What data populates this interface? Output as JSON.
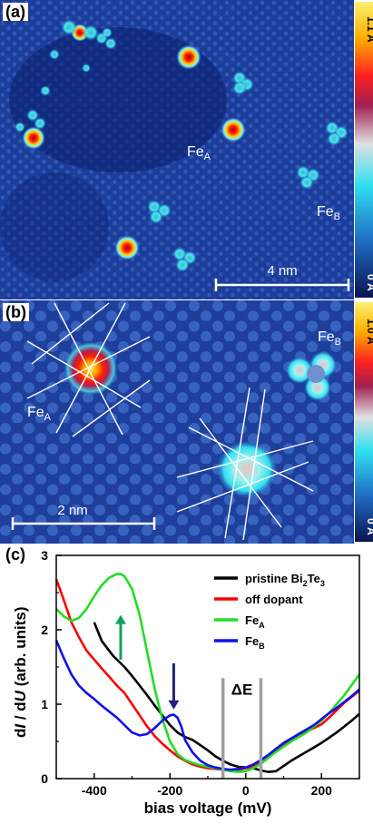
{
  "panel_a": {
    "label": "(a)",
    "scale_bar": "4 nm",
    "colorbar_max": "1.1 Å",
    "colorbar_min": "0 Å",
    "site_a": {
      "base": "Fe",
      "sub": "A"
    },
    "site_b": {
      "base": "Fe",
      "sub": "B"
    }
  },
  "panel_b": {
    "label": "(b)",
    "scale_bar": "2 nm",
    "colorbar_max": "1.0 Å",
    "colorbar_min": "0 Å",
    "site_a": {
      "base": "Fe",
      "sub": "A"
    },
    "site_b": {
      "base": "Fe",
      "sub": "B"
    }
  },
  "panel_c": {
    "label": "(c)",
    "delta_e": "ΔE",
    "legend": [
      {
        "parts": [
          {
            "t": "pristine Bi"
          },
          {
            "t": "2",
            "sub": true
          },
          {
            "t": "Te"
          },
          {
            "t": "3",
            "sub": true
          }
        ],
        "color": "#000000"
      },
      {
        "parts": [
          {
            "t": "off dopant"
          }
        ],
        "color": "#ff0000"
      },
      {
        "parts": [
          {
            "t": "Fe"
          },
          {
            "t": "A",
            "sub": true
          }
        ],
        "color": "#22dd22"
      },
      {
        "parts": [
          {
            "t": "Fe"
          },
          {
            "t": "B",
            "sub": true
          }
        ],
        "color": "#1010ee"
      }
    ],
    "xlabel": "bias voltage (mV)",
    "ylabel_parts": [
      {
        "t": "d",
        "i": false
      },
      {
        "t": "I",
        "i": true
      },
      {
        "t": " / d",
        "i": false
      },
      {
        "t": "U",
        "i": true
      },
      {
        "t": " (arb. units)",
        "i": false
      }
    ],
    "chart_data": {
      "type": "line",
      "xlim": [
        -500,
        300
      ],
      "ylim": [
        0,
        3
      ],
      "xticks": [
        -400,
        -200,
        0,
        200
      ],
      "yticks": [
        0,
        1,
        2,
        3
      ],
      "series": [
        {
          "name": "pristine Bi2Te3",
          "color": "#000000",
          "x": [
            -400,
            -380,
            -350,
            -320,
            -300,
            -280,
            -260,
            -240,
            -220,
            -200,
            -180,
            -160,
            -140,
            -120,
            -100,
            -80,
            -60,
            -40,
            -20,
            0,
            20,
            40,
            60,
            80,
            100,
            120,
            140,
            160,
            180,
            200,
            220,
            240,
            260,
            280,
            300
          ],
          "y": [
            2.1,
            1.85,
            1.65,
            1.5,
            1.38,
            1.25,
            1.12,
            0.98,
            0.85,
            0.72,
            0.62,
            0.56,
            0.52,
            0.45,
            0.38,
            0.3,
            0.24,
            0.19,
            0.16,
            0.15,
            0.14,
            0.11,
            0.09,
            0.1,
            0.17,
            0.24,
            0.3,
            0.36,
            0.42,
            0.48,
            0.55,
            0.62,
            0.7,
            0.78,
            0.87
          ]
        },
        {
          "name": "off dopant",
          "color": "#ff0000",
          "x": [
            -500,
            -480,
            -460,
            -440,
            -420,
            -400,
            -380,
            -360,
            -340,
            -320,
            -300,
            -280,
            -260,
            -240,
            -220,
            -200,
            -180,
            -160,
            -140,
            -120,
            -100,
            -80,
            -60,
            -40,
            -20,
            0,
            20,
            40,
            60,
            80,
            100,
            120,
            140,
            160,
            180,
            200,
            220,
            240,
            260,
            280,
            300
          ],
          "y": [
            2.68,
            2.4,
            2.1,
            1.9,
            1.72,
            1.6,
            1.48,
            1.37,
            1.25,
            1.15,
            1.0,
            0.85,
            0.7,
            0.57,
            0.47,
            0.38,
            0.3,
            0.24,
            0.19,
            0.16,
            0.14,
            0.13,
            0.12,
            0.11,
            0.12,
            0.14,
            0.17,
            0.21,
            0.28,
            0.37,
            0.45,
            0.52,
            0.58,
            0.63,
            0.68,
            0.73,
            0.82,
            0.92,
            1.02,
            1.1,
            1.18
          ]
        },
        {
          "name": "FeA",
          "color": "#22dd22",
          "x": [
            -500,
            -480,
            -460,
            -440,
            -420,
            -400,
            -380,
            -360,
            -340,
            -330,
            -320,
            -300,
            -280,
            -260,
            -240,
            -220,
            -200,
            -180,
            -160,
            -140,
            -120,
            -100,
            -80,
            -60,
            -40,
            -20,
            0,
            20,
            40,
            60,
            80,
            100,
            120,
            140,
            160,
            180,
            200,
            220,
            240,
            260,
            280,
            300
          ],
          "y": [
            2.28,
            2.18,
            2.12,
            2.16,
            2.28,
            2.45,
            2.6,
            2.7,
            2.75,
            2.75,
            2.72,
            2.55,
            2.2,
            1.7,
            1.2,
            0.8,
            0.5,
            0.33,
            0.25,
            0.21,
            0.18,
            0.16,
            0.14,
            0.12,
            0.1,
            0.09,
            0.1,
            0.14,
            0.2,
            0.28,
            0.36,
            0.43,
            0.5,
            0.56,
            0.62,
            0.7,
            0.78,
            0.88,
            1.0,
            1.12,
            1.26,
            1.4
          ]
        },
        {
          "name": "FeB",
          "color": "#1010ee",
          "x": [
            -500,
            -480,
            -460,
            -440,
            -420,
            -400,
            -380,
            -360,
            -340,
            -320,
            -300,
            -280,
            -260,
            -240,
            -220,
            -200,
            -190,
            -180,
            -170,
            -160,
            -140,
            -120,
            -100,
            -80,
            -60,
            -40,
            -20,
            0,
            20,
            40,
            60,
            80,
            100,
            120,
            140,
            160,
            180,
            200,
            220,
            240,
            260,
            280,
            300
          ],
          "y": [
            1.86,
            1.62,
            1.4,
            1.25,
            1.15,
            1.07,
            0.98,
            0.9,
            0.82,
            0.72,
            0.62,
            0.58,
            0.6,
            0.68,
            0.78,
            0.85,
            0.86,
            0.82,
            0.7,
            0.52,
            0.35,
            0.24,
            0.18,
            0.15,
            0.13,
            0.12,
            0.13,
            0.15,
            0.19,
            0.25,
            0.32,
            0.4,
            0.48,
            0.54,
            0.6,
            0.66,
            0.72,
            0.8,
            0.88,
            0.95,
            1.03,
            1.11,
            1.2
          ]
        }
      ],
      "arrows": [
        {
          "target_x": -330,
          "target_y": 2.2,
          "from_y": 1.6,
          "color": "#10a060"
        },
        {
          "target_x": -190,
          "target_y": 0.93,
          "from_y": 1.55,
          "color": "#202080"
        }
      ],
      "delta_e_lines_x": [
        -60,
        40
      ]
    }
  }
}
